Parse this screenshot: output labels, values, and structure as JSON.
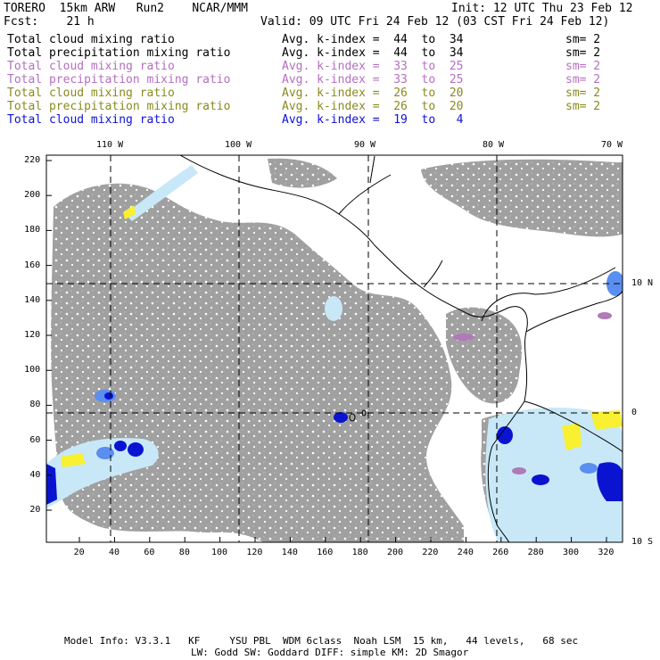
{
  "header": {
    "model": "TORERO  15km ARW   Run2    NCAR/MMM",
    "init": "Init: 12 UTC Thu 23 Feb 12",
    "fcst": "Fcst:    21 h",
    "valid": "Valid: 09 UTC Fri 24 Feb 12 (03 CST Fri 24 Feb 12)"
  },
  "legend": [
    {
      "name": "Total cloud mixing ratio",
      "k": "Avg. k-index =  44  to  34",
      "sm": "sm= 2",
      "color": "#000000"
    },
    {
      "name": "Total precipitation mixing ratio",
      "k": "Avg. k-index =  44  to  34",
      "sm": "sm= 2",
      "color": "#000000"
    },
    {
      "name": "Total cloud mixing ratio",
      "k": "Avg. k-index =  33  to  25",
      "sm": "sm= 2",
      "color": "#b56fc0"
    },
    {
      "name": "Total precipitation mixing ratio",
      "k": "Avg. k-index =  33  to  25",
      "sm": "sm= 2",
      "color": "#b56fc0"
    },
    {
      "name": "Total cloud mixing ratio",
      "k": "Avg. k-index =  26  to  20",
      "sm": "sm= 2",
      "color": "#8a8a1e"
    },
    {
      "name": "Total precipitation mixing ratio",
      "k": "Avg. k-index =  26  to  20",
      "sm": "sm= 2",
      "color": "#8a8a1e"
    },
    {
      "name": "Total cloud mixing ratio",
      "k": "Avg. k-index =  19  to   4",
      "sm": "",
      "color": "#1010d8"
    }
  ],
  "map": {
    "lon_labels": [
      "110 W",
      "100 W",
      "90 W",
      "80 W",
      "70 W"
    ],
    "lat_labels": [
      "10 N",
      "0",
      "10 S"
    ],
    "y_ticks": [
      "220",
      "200",
      "180",
      "160",
      "140",
      "120",
      "100",
      "80",
      "60",
      "40",
      "20"
    ],
    "x_ticks": [
      "20",
      "40",
      "60",
      "80",
      "100",
      "120",
      "140",
      "160",
      "180",
      "200",
      "220",
      "240",
      "260",
      "280",
      "300",
      "320"
    ],
    "colors": {
      "cloud_gray": "#a0a0a0",
      "light_blue": "#c8e8f8",
      "mid_blue": "#5a8ef0",
      "dark_blue": "#0a14d0",
      "yellow": "#f8f030",
      "purple": "#b07ab8"
    }
  },
  "footer": {
    "line1": "Model Info: V3.3.1   KF     YSU PBL  WDM 6class  Noah LSM  15 km,   44 levels,   68 sec",
    "line2": "LW: Godd SW: Goddard DIFF: simple KM: 2D Smagor"
  }
}
